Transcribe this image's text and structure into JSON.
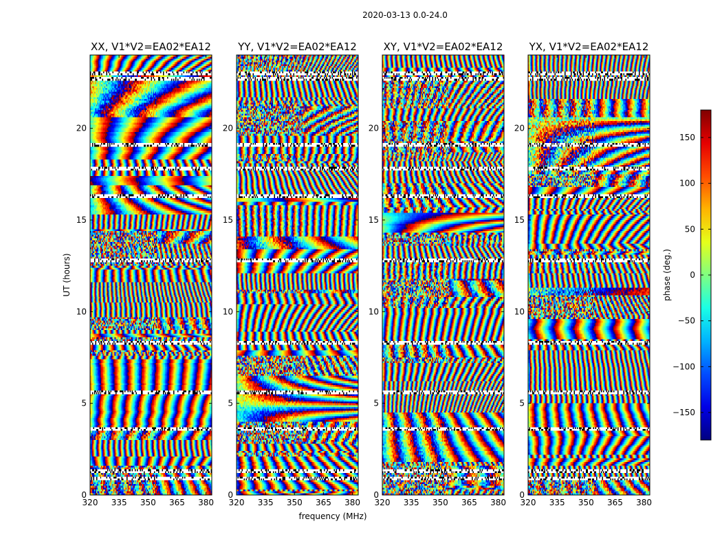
{
  "chart_data": {
    "type": "heatmap",
    "suptitle": "2020-03-13 0.0-24.0",
    "panels": [
      {
        "title": "XX, V1*V2=EA02*EA12"
      },
      {
        "title": "YY, V1*V2=EA02*EA12"
      },
      {
        "title": "XY, V1*V2=EA02*EA12"
      },
      {
        "title": "YX, V1*V2=EA02*EA12"
      }
    ],
    "xlabel": "frequency (MHz)",
    "ylabel": "UT (hours)",
    "xlim": [
      320,
      383
    ],
    "ylim": [
      0,
      24
    ],
    "xticks": [
      320,
      335,
      350,
      365,
      380
    ],
    "yticks": [
      0,
      5,
      10,
      15,
      20
    ],
    "colorbar": {
      "label": "phase (deg.)",
      "range": [
        -180,
        180
      ],
      "ticks": [
        -150,
        -100,
        -50,
        0,
        50,
        100,
        150
      ],
      "colormap": "jet"
    },
    "gap_rows_hours": [
      0.9,
      1.3,
      3.6,
      5.6,
      8.3,
      12.8,
      16.3,
      17.8,
      19.1,
      22.7,
      23.0
    ]
  }
}
